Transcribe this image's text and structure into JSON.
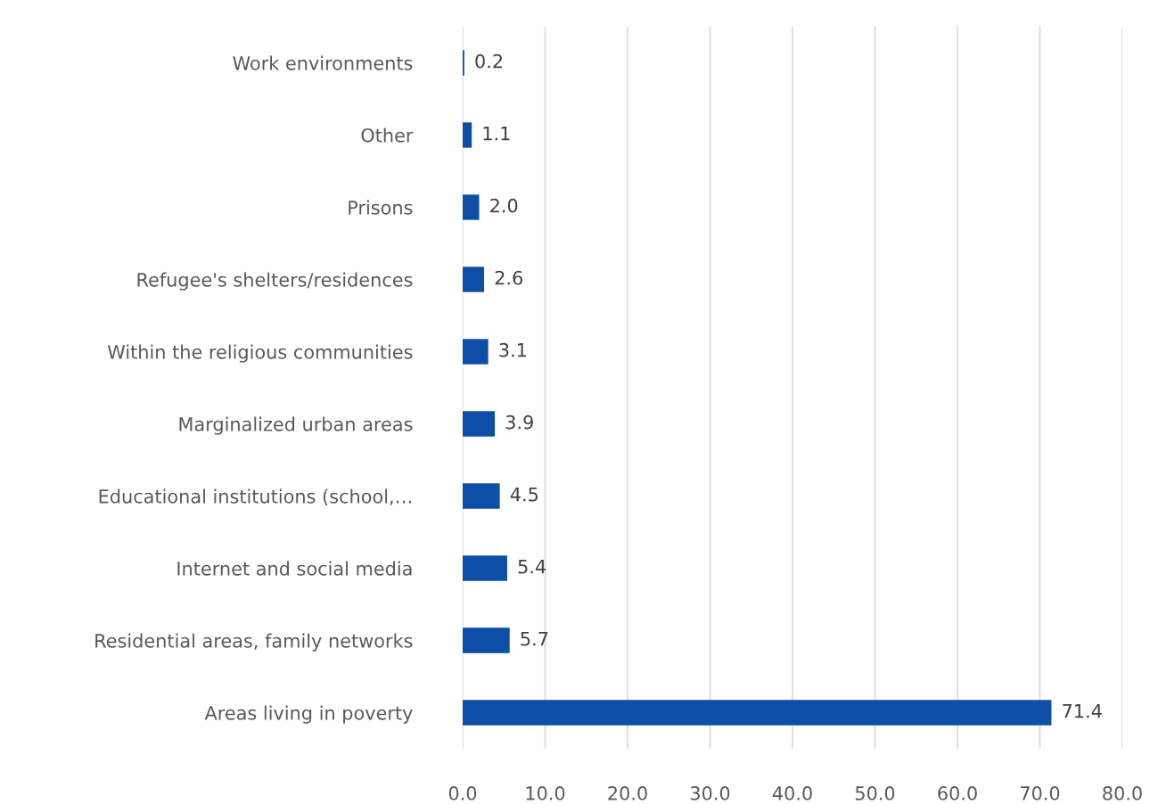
{
  "chart_data": {
    "type": "bar",
    "orientation": "horizontal",
    "categories": [
      "Work environments",
      "Other",
      "Prisons",
      "Refugee's shelters/residences",
      "Within the religious communities",
      "Marginalized urban areas",
      "Educational institutions (school,…",
      "Internet and social media",
      "Residential areas, family networks",
      "Areas living in poverty"
    ],
    "values": [
      0.2,
      1.1,
      2.0,
      2.6,
      3.1,
      3.9,
      4.5,
      5.4,
      5.7,
      71.4
    ],
    "value_labels": [
      "0.2",
      "1.1",
      "2.0",
      "2.6",
      "3.1",
      "3.9",
      "4.5",
      "5.4",
      "5.7",
      "71.4"
    ],
    "color": "#0d4ea6",
    "xlim": [
      0,
      80
    ],
    "xticks": [
      {
        "value": 0,
        "label": "0.0"
      },
      {
        "value": 10,
        "label": "10.0"
      },
      {
        "value": 20,
        "label": "20.0"
      },
      {
        "value": 30,
        "label": "30.0"
      },
      {
        "value": 40,
        "label": "40.0"
      },
      {
        "value": 50,
        "label": "50.0"
      },
      {
        "value": 60,
        "label": "60.0"
      },
      {
        "value": 70,
        "label": "70.0"
      },
      {
        "value": 80,
        "label": "80.0"
      }
    ],
    "grid": "x"
  }
}
